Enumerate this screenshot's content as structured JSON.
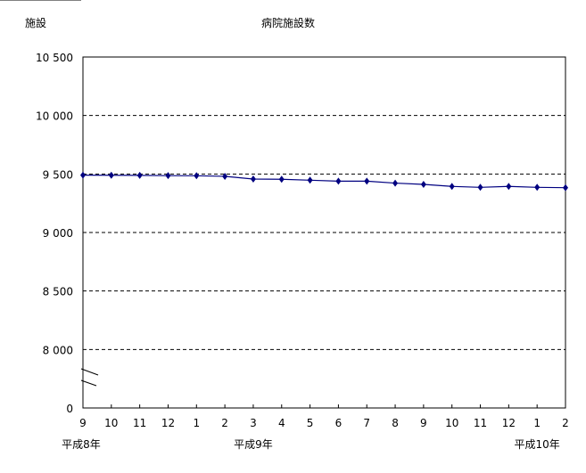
{
  "chart_data": {
    "type": "line",
    "title": "病院施設数",
    "ylabel": "施設",
    "xlabel": "",
    "ylim": [
      7500,
      10500
    ],
    "yticks": [
      8000,
      8500,
      9000,
      9500,
      10000,
      10500
    ],
    "ytick_labels": [
      "8 000",
      "8 500",
      "9 000",
      "9 500",
      "10 000",
      "10 500"
    ],
    "ybottom_label": "0",
    "axis_break": true,
    "grid": "horizontal dashed",
    "categories": [
      "9",
      "10",
      "11",
      "12",
      "1",
      "2",
      "3",
      "4",
      "5",
      "6",
      "7",
      "8",
      "9",
      "10",
      "11",
      "12",
      "1",
      "2"
    ],
    "year_labels": [
      {
        "label": "平成8年",
        "at": 0
      },
      {
        "label": "平成9年",
        "at": 6
      },
      {
        "label": "平成10年",
        "at": 16
      }
    ],
    "series": [
      {
        "values": [
          9490,
          9489,
          9488,
          9486,
          9485,
          9480,
          9457,
          9455,
          9447,
          9439,
          9439,
          9422,
          9411,
          9394,
          9386,
          9394,
          9386,
          9383
        ],
        "color": "#000080"
      }
    ]
  }
}
